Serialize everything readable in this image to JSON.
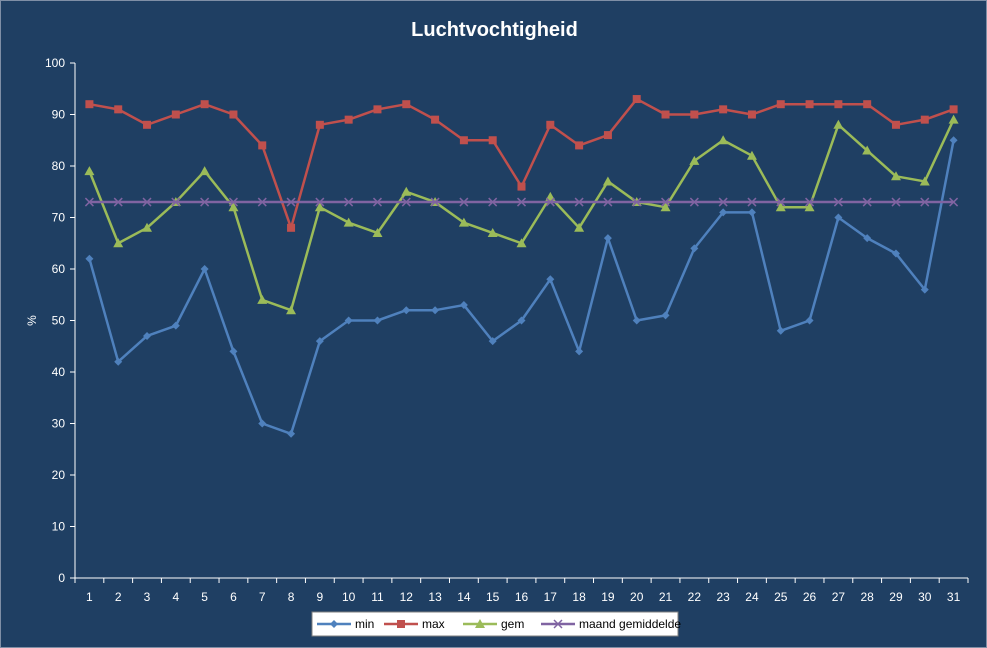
{
  "chart_data": {
    "type": "line",
    "title": "Luchtvochtigheid",
    "xlabel": "",
    "ylabel": "%",
    "ylim": [
      0,
      100
    ],
    "yticks": [
      0,
      10,
      20,
      30,
      40,
      50,
      60,
      70,
      80,
      90,
      100
    ],
    "categories": [
      "1",
      "2",
      "3",
      "4",
      "5",
      "6",
      "7",
      "8",
      "9",
      "10",
      "11",
      "12",
      "13",
      "14",
      "15",
      "16",
      "17",
      "18",
      "19",
      "20",
      "21",
      "22",
      "23",
      "24",
      "25",
      "26",
      "27",
      "28",
      "29",
      "30",
      "31"
    ],
    "grid": false,
    "legend_position": "bottom",
    "series": [
      {
        "name": "min",
        "color": "#4f81bd",
        "marker": "diamond",
        "values": [
          62,
          42,
          47,
          49,
          60,
          44,
          30,
          28,
          46,
          50,
          50,
          52,
          52,
          53,
          46,
          50,
          58,
          44,
          66,
          50,
          51,
          64,
          71,
          71,
          48,
          50,
          70,
          66,
          63,
          56,
          85
        ]
      },
      {
        "name": "max",
        "color": "#c0504d",
        "marker": "square",
        "values": [
          92,
          91,
          88,
          90,
          92,
          90,
          84,
          68,
          88,
          89,
          91,
          92,
          89,
          85,
          85,
          76,
          88,
          84,
          86,
          93,
          90,
          90,
          91,
          90,
          92,
          92,
          92,
          92,
          88,
          89,
          91
        ]
      },
      {
        "name": "gem",
        "color": "#9bbb59",
        "marker": "triangle",
        "values": [
          79,
          65,
          68,
          73,
          79,
          72,
          54,
          52,
          72,
          69,
          67,
          75,
          73,
          69,
          67,
          65,
          74,
          68,
          77,
          73,
          72,
          81,
          85,
          82,
          72,
          72,
          88,
          83,
          78,
          77,
          89
        ]
      },
      {
        "name": "maand gemiddelde",
        "color": "#8064a2",
        "marker": "x",
        "values": [
          73,
          73,
          73,
          73,
          73,
          73,
          73,
          73,
          73,
          73,
          73,
          73,
          73,
          73,
          73,
          73,
          73,
          73,
          73,
          73,
          73,
          73,
          73,
          73,
          73,
          73,
          73,
          73,
          73,
          73,
          73
        ]
      }
    ]
  }
}
